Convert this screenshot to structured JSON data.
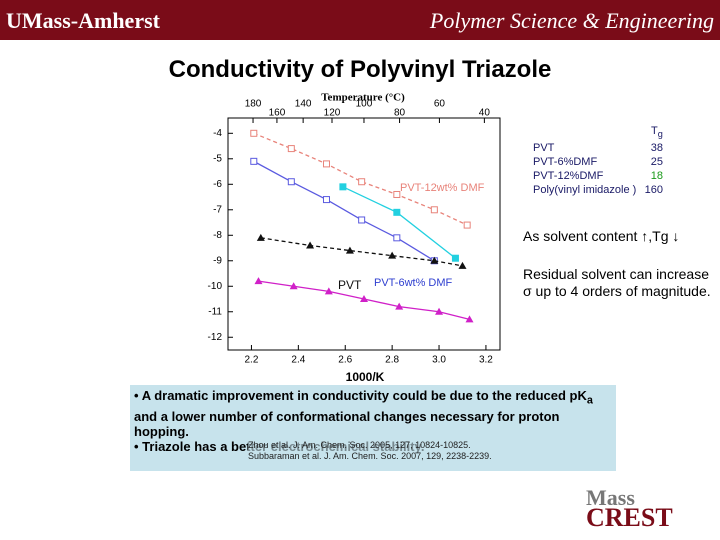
{
  "header": {
    "left": "UMass-Amherst",
    "right": "Polymer Science & Engineering"
  },
  "title": "Conductivity of Polyvinyl Triazole",
  "chart_data": {
    "type": "line",
    "x_label": "1000/K",
    "top_label": "Temperature (°C)",
    "xlim": [
      2.1,
      3.26
    ],
    "ylim": [
      -12.5,
      -3.4
    ],
    "xticks": [
      2.2,
      2.4,
      2.6,
      2.8,
      {
        "value": 3,
        "label": "3.0"
      },
      3.2
    ],
    "yticks": [
      -4,
      -5,
      -6,
      -7,
      -8,
      -9,
      -10,
      -11,
      -12
    ],
    "top_ticks": [
      180,
      160,
      140,
      120,
      100,
      80,
      60,
      40
    ],
    "series": [
      {
        "name": "PVT-12wt% DMF",
        "color": "#e8837a",
        "marker": "square-open",
        "dash": true,
        "x": [
          2.21,
          2.37,
          2.52,
          2.67,
          2.82,
          2.98,
          3.12
        ],
        "values": [
          -4.0,
          -4.6,
          -5.2,
          -5.9,
          -6.4,
          -7.0,
          -7.6
        ]
      },
      {
        "color": "#5a5ae0",
        "marker": "square-open",
        "dash": false,
        "x": [
          2.21,
          2.37,
          2.52,
          2.67,
          2.82,
          2.98
        ],
        "values": [
          -5.1,
          -5.9,
          -6.6,
          -7.4,
          -8.1,
          -9.0
        ]
      },
      {
        "name": "PVT-6wt% DMF",
        "color": "#22d0e0",
        "marker": "square",
        "dash": false,
        "x": [
          2.59,
          2.82,
          3.07
        ],
        "values": [
          -6.1,
          -7.1,
          -8.9
        ]
      },
      {
        "name": "PVT",
        "color": "#111111",
        "marker": "triangle",
        "dash": true,
        "x": [
          2.24,
          2.45,
          2.62,
          2.8,
          2.98,
          3.1
        ],
        "values": [
          -8.1,
          -8.4,
          -8.6,
          -8.8,
          -9.0,
          -9.2
        ]
      },
      {
        "color": "#d020c8",
        "marker": "triangle",
        "dash": false,
        "x": [
          2.23,
          2.38,
          2.53,
          2.68,
          2.83,
          3.0,
          3.13
        ],
        "values": [
          -9.8,
          -10.0,
          -10.2,
          -10.5,
          -10.8,
          -11.0,
          -11.3
        ]
      }
    ]
  },
  "tg_table": {
    "header": "T",
    "header_sub": "g",
    "rows": [
      [
        "PVT",
        "38"
      ],
      [
        "PVT-6%DMF",
        "25"
      ],
      [
        "PVT-12%DMF",
        "18"
      ],
      [
        "Poly(vinyl imidazole )",
        "160"
      ]
    ]
  },
  "notes": [
    "As solvent content ↑,Tg ↓",
    "Residual solvent can increase σ up to 4 orders of magnitude."
  ],
  "bullets": {
    "first_a": "A dramatic improvement in conductivity could be due to the reduced pK",
    "first_sub": "a",
    "first_b": " and a lower number of conformational changes necessary for proton hopping.",
    "second": "Triazole has a better electrochemical stability."
  },
  "references": [
    "Zhou et al. J. Am. Chem. Soc. 2005, 127, 10824-10825.",
    "Subbaraman et al. J. Am. Chem. Soc. 2007, 129, 2238-2239."
  ],
  "logo": {
    "top": "Mass",
    "bottom": "CREST"
  }
}
